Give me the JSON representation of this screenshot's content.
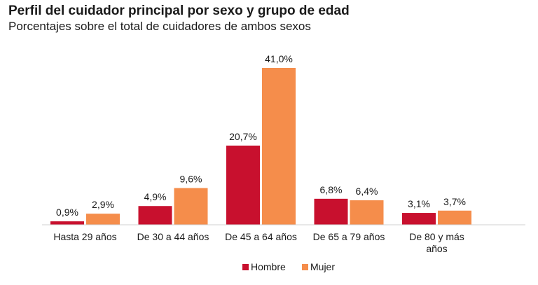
{
  "header": {
    "title": "Perfil del cuidador principal por sexo y grupo de edad",
    "subtitle": "Porcentajes sobre el total de cuidadores de ambos sexos"
  },
  "chart_data": {
    "type": "bar",
    "title": "Perfil del cuidador principal por sexo y grupo de edad",
    "subtitle": "Porcentajes sobre el total de cuidadores de ambos sexos",
    "categories": [
      [
        "Hasta 29 años"
      ],
      [
        "De 30 a 44 años"
      ],
      [
        "De 45 a 64 años"
      ],
      [
        "De 65 a 79 años"
      ],
      [
        "De 80 y más",
        "años"
      ]
    ],
    "series": [
      {
        "name": "Hombre",
        "color": "#c8102e",
        "values": [
          0.9,
          4.9,
          20.7,
          6.8,
          3.1
        ],
        "labels": [
          "0,9%",
          "4,9%",
          "20,7%",
          "6,8%",
          "3,1%"
        ]
      },
      {
        "name": "Mujer",
        "color": "#f58d4b",
        "values": [
          2.9,
          9.6,
          41.0,
          6.4,
          3.7
        ],
        "labels": [
          "2,9%",
          "9,6%",
          "41,0%",
          "6,4%",
          "3,7%"
        ]
      }
    ],
    "ylim": [
      0,
      42
    ],
    "grid": false,
    "legend": "bottom-center"
  }
}
